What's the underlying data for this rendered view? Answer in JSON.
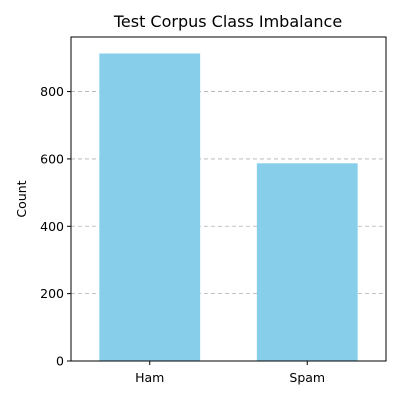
{
  "chart_data": {
    "type": "bar",
    "title": "Test Corpus Class Imbalance",
    "xlabel": "",
    "ylabel": "Count",
    "categories": [
      "Ham",
      "Spam"
    ],
    "values": [
      913,
      587
    ],
    "ylim": [
      0,
      962
    ],
    "yticks": [
      0,
      200,
      400,
      600,
      800
    ],
    "grid": "y dashed",
    "bar_color": "#87CEEB"
  }
}
